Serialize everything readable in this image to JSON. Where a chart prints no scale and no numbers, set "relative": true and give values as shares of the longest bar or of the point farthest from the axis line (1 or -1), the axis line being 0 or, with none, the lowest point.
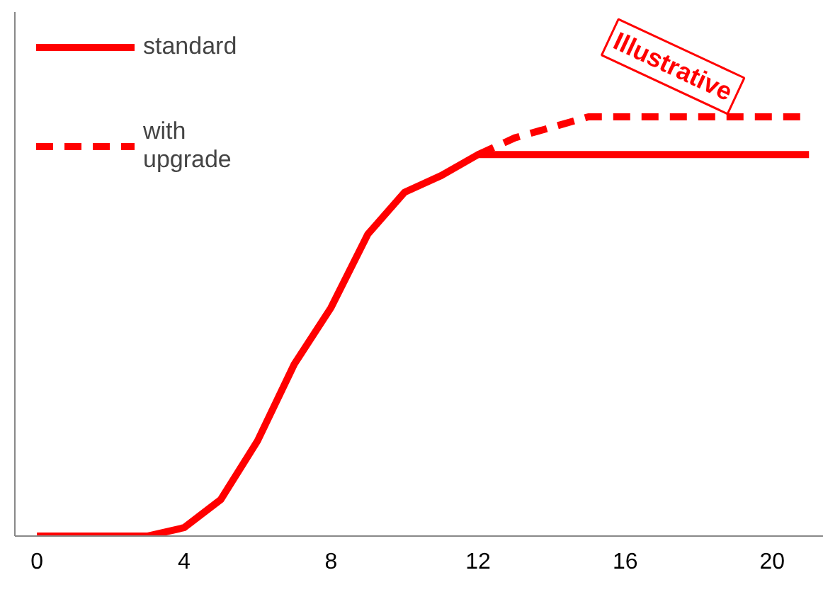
{
  "chart_data": {
    "type": "line",
    "relative": true,
    "x": [
      0,
      1,
      2,
      3,
      4,
      5,
      6,
      7,
      8,
      9,
      10,
      11,
      12,
      13,
      14,
      15,
      16,
      17,
      18,
      19,
      20,
      21
    ],
    "xlim": [
      -0.6,
      21.4
    ],
    "xticks": [
      0,
      4,
      8,
      12,
      16,
      20
    ],
    "series": [
      {
        "name": "standard",
        "color": "#ff0000",
        "line_style": "solid",
        "values": [
          0,
          0,
          0,
          0,
          0.02,
          0.087,
          0.227,
          0.41,
          0.545,
          0.72,
          0.82,
          0.86,
          0.91,
          0.91,
          0.91,
          0.91,
          0.91,
          0.91,
          0.91,
          0.91,
          0.91,
          0.91
        ]
      },
      {
        "name": "with upgrade",
        "color": "#ff0000",
        "line_style": "dashed",
        "values": [
          null,
          null,
          null,
          null,
          null,
          null,
          null,
          null,
          null,
          null,
          null,
          null,
          0.91,
          0.95,
          0.975,
          1,
          1,
          1,
          1,
          1,
          1,
          1
        ]
      }
    ],
    "annotations": [
      "Illustrative"
    ],
    "legend": "top left",
    "grid": false,
    "marker": "none"
  }
}
